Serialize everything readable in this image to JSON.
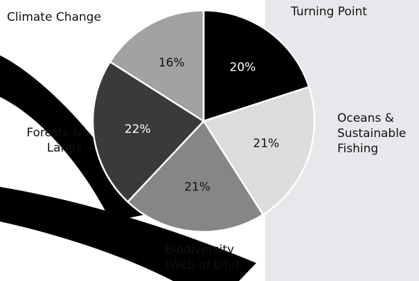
{
  "chart_data": {
    "type": "pie",
    "categories": [
      "Turning Point",
      "Oceans & Sustainable Fishing",
      "Biodiversity (Web of Life)",
      "Forests & Lands",
      "Climate Change"
    ],
    "values": [
      20,
      21,
      21,
      22,
      16
    ],
    "value_labels": [
      "20%",
      "21%",
      "21%",
      "22%",
      "16%"
    ],
    "colors": [
      "#000000",
      "#dcdcdc",
      "#868686",
      "#3a3a3a",
      "#a2a2a2"
    ],
    "label_colors": [
      "#ffffff",
      "#111111",
      "#111111",
      "#ffffff",
      "#111111"
    ]
  }
}
